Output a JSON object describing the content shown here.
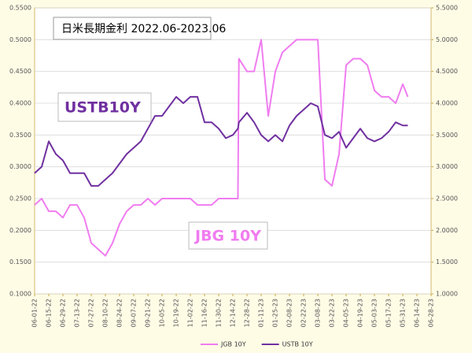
{
  "chart_data": {
    "type": "line",
    "title": "日米長期金利 2022.06-2023.06",
    "annotations": [
      "USTB10Y",
      "JBG 10Y"
    ],
    "x": [
      "06-01-22",
      "06-08-22",
      "06-15-22",
      "06-22-22",
      "06-29-22",
      "07-06-22",
      "07-13-22",
      "07-20-22",
      "07-27-22",
      "08-03-22",
      "08-10-22",
      "08-17-22",
      "08-24-22",
      "08-31-22",
      "09-07-22",
      "09-14-22",
      "09-21-22",
      "09-28-22",
      "10-05-22",
      "10-12-22",
      "10-19-22",
      "10-26-22",
      "11-02-22",
      "11-09-22",
      "11-16-22",
      "11-23-22",
      "11-30-22",
      "12-07-22",
      "12-14-22",
      "12-19-22",
      "12-20-22",
      "12-28-22",
      "01-04-23",
      "01-11-23",
      "01-18-23",
      "01-25-23",
      "02-01-23",
      "02-08-23",
      "02-15-23",
      "02-22-23",
      "03-01-23",
      "03-08-23",
      "03-15-23",
      "03-22-23",
      "03-29-23",
      "04-05-23",
      "04-12-23",
      "04-19-23",
      "04-26-23",
      "05-03-23",
      "05-10-23",
      "05-17-23",
      "05-24-23",
      "05-31-23",
      "06-05-23"
    ],
    "series": [
      {
        "name": "JGB 10Y",
        "color": "#f07cf0",
        "axis": "y",
        "values": [
          0.24,
          0.25,
          0.23,
          0.23,
          0.22,
          0.24,
          0.24,
          0.22,
          0.18,
          0.17,
          0.16,
          0.18,
          0.21,
          0.23,
          0.24,
          0.24,
          0.25,
          0.24,
          0.25,
          0.25,
          0.25,
          0.25,
          0.25,
          0.24,
          0.24,
          0.24,
          0.25,
          0.25,
          0.25,
          0.25,
          0.47,
          0.45,
          0.45,
          0.5,
          0.38,
          0.45,
          0.48,
          0.49,
          0.5,
          0.5,
          0.5,
          0.5,
          0.28,
          0.27,
          0.32,
          0.46,
          0.47,
          0.47,
          0.46,
          0.42,
          0.41,
          0.41,
          0.4,
          0.43,
          0.41
        ]
      },
      {
        "name": "USTB 10Y",
        "color": "#7030a0",
        "axis": "y2",
        "values": [
          2.9,
          3.0,
          3.4,
          3.2,
          3.1,
          2.9,
          2.9,
          2.9,
          2.7,
          2.7,
          2.8,
          2.9,
          3.05,
          3.2,
          3.3,
          3.4,
          3.6,
          3.8,
          3.8,
          3.95,
          4.1,
          4.0,
          4.1,
          4.1,
          3.7,
          3.7,
          3.6,
          3.45,
          3.5,
          3.6,
          3.7,
          3.85,
          3.7,
          3.5,
          3.4,
          3.5,
          3.4,
          3.65,
          3.8,
          3.9,
          4.0,
          3.95,
          3.5,
          3.45,
          3.55,
          3.3,
          3.45,
          3.6,
          3.45,
          3.4,
          3.45,
          3.55,
          3.7,
          3.65,
          3.65
        ]
      }
    ],
    "xlim": [
      "06-01-22",
      "06-28-23"
    ],
    "xticks": [
      "06-01-22",
      "06-15-22",
      "06-29-22",
      "07-13-22",
      "07-27-22",
      "08-10-22",
      "08-24-22",
      "09-07-22",
      "09-21-22",
      "10-05-22",
      "10-19-22",
      "11-02-22",
      "11-16-22",
      "11-30-22",
      "12-14-22",
      "12-28-22",
      "01-11-23",
      "01-25-23",
      "02-08-23",
      "02-22-23",
      "03-08-23",
      "03-22-23",
      "04-05-23",
      "04-19-23",
      "05-03-23",
      "05-17-23",
      "05-31-23",
      "06-14-23",
      "06-28-23"
    ],
    "ylim": [
      0.1,
      0.55
    ],
    "yticks": [
      {
        "value": 0.1,
        "label": "0.1000"
      },
      {
        "value": 0.15,
        "label": "0.1500"
      },
      {
        "value": 0.2,
        "label": "0.2000"
      },
      {
        "value": 0.25,
        "label": "0.2500"
      },
      {
        "value": 0.3,
        "label": "0.3000"
      },
      {
        "value": 0.35,
        "label": "0.3500"
      },
      {
        "value": 0.4,
        "label": "0.4000"
      },
      {
        "value": 0.45,
        "label": "0.4500"
      },
      {
        "value": 0.5,
        "label": "0.5000"
      },
      {
        "value": 0.55,
        "label": "0.5500"
      }
    ],
    "y2lim": [
      1.0,
      5.5
    ],
    "y2ticks": [
      {
        "value": 1,
        "label": "1.0000"
      },
      {
        "value": 1.5,
        "label": "1.5000"
      },
      {
        "value": 2,
        "label": "2.0000"
      },
      {
        "value": 2.5,
        "label": "2.5000"
      },
      {
        "value": 3,
        "label": "3.0000"
      },
      {
        "value": 3.5,
        "label": "3.5000"
      },
      {
        "value": 4,
        "label": "4.0000"
      },
      {
        "value": 4.5,
        "label": "4.5000"
      },
      {
        "value": 5,
        "label": "5.0000"
      },
      {
        "value": 5.5,
        "label": "5.5000"
      }
    ],
    "grid": true
  }
}
